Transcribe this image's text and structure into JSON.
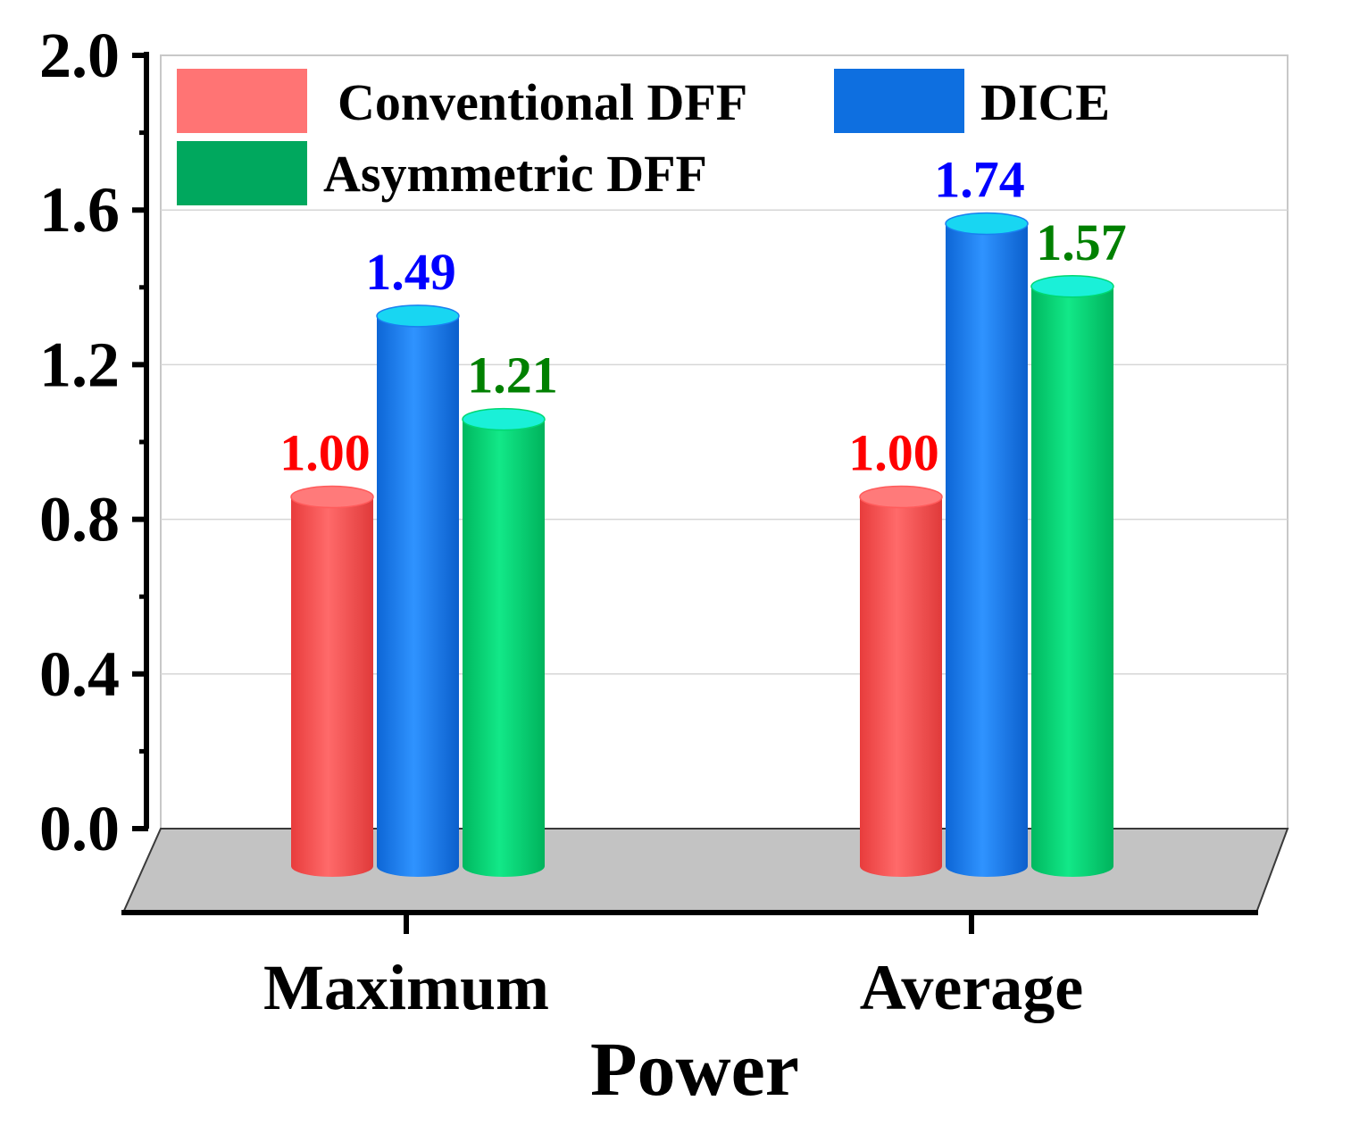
{
  "chart_data": {
    "type": "bar",
    "title": "",
    "xlabel": "Power",
    "ylabel": "",
    "ylim": [
      0,
      2.0
    ],
    "yticks": [
      "0.0",
      "0.4",
      "0.8",
      "1.2",
      "1.6",
      "2.0"
    ],
    "categories": [
      "Maximum",
      "Average"
    ],
    "series": [
      {
        "name": "Conventional DFF",
        "values": [
          1.0,
          1.0
        ],
        "labels": [
          "1.00",
          "1.00"
        ],
        "color": "#ff5b5b",
        "top_color": "#ff7a7a",
        "label_color": "#ff0000"
      },
      {
        "name": "DICE",
        "values": [
          1.49,
          1.74
        ],
        "labels": [
          "1.49",
          "1.74"
        ],
        "color": "#1a7ff0",
        "top_color": "#18d6f2",
        "label_color": "#0000ff"
      },
      {
        "name": "Asymmetric DFF",
        "values": [
          1.21,
          1.57
        ],
        "labels": [
          "1.21",
          "1.57"
        ],
        "color": "#00d873",
        "top_color": "#1af0d8",
        "label_color": "#008000"
      }
    ],
    "legend_position": "top-left",
    "grid": true,
    "style": "3d-cylinder"
  }
}
